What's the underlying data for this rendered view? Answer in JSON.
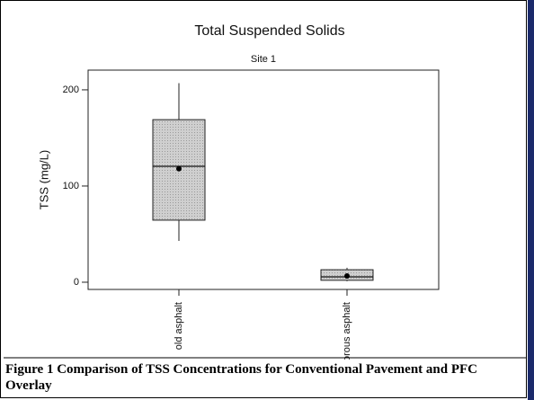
{
  "chart_data": {
    "type": "box",
    "title": "Total Suspended Solids",
    "subtitle": "Site 1",
    "y_label": "TSS (mg/L)",
    "caption": "Figure 1 Comparison of TSS Concentrations for Conventional Pavement and PFC Overlay",
    "categories": [
      "old asphalt",
      "porous asphalt"
    ],
    "min": [
      43,
      1
    ],
    "q1": [
      64.5,
      2
    ],
    "median": [
      120.5,
      5.6
    ],
    "q3": [
      169,
      13
    ],
    "max": [
      207,
      15
    ],
    "mean": [
      118,
      6.5
    ],
    "color": "#c8c8c8",
    "ylim": [
      -7.5,
      220.5
    ],
    "yticks": [
      0,
      100,
      200
    ]
  }
}
